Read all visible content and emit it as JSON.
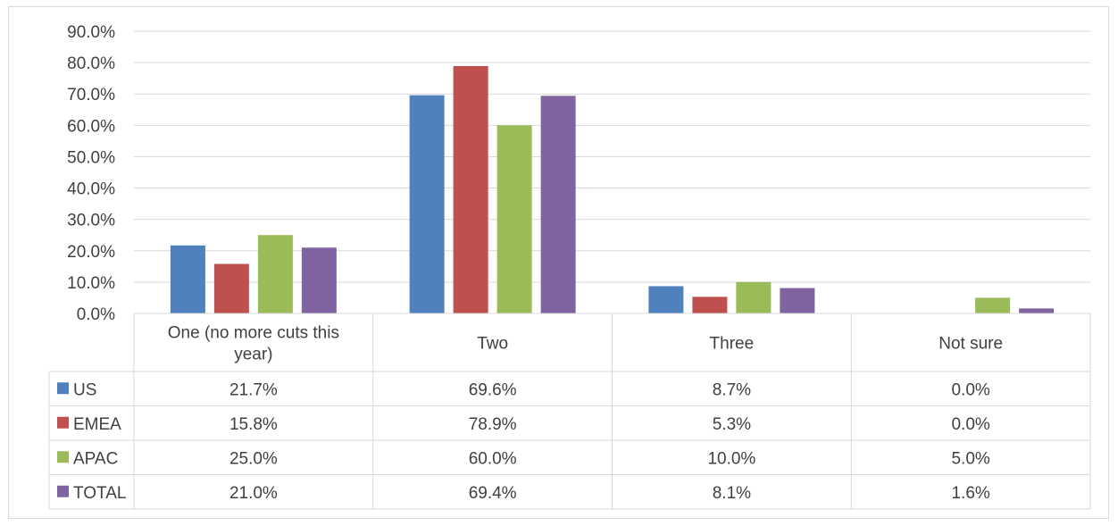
{
  "chart_data": {
    "type": "bar",
    "categories": [
      [
        "One (no more cuts this",
        "year)"
      ],
      [
        "Two"
      ],
      [
        "Three"
      ],
      [
        "Not sure"
      ]
    ],
    "series": [
      {
        "name": "US",
        "color": "#4f81bd",
        "values": [
          21.7,
          69.6,
          8.7,
          0.0
        ],
        "labels": [
          "21.7%",
          "69.6%",
          "8.7%",
          "0.0%"
        ]
      },
      {
        "name": "EMEA",
        "color": "#c0504d",
        "values": [
          15.8,
          78.9,
          5.3,
          0.0
        ],
        "labels": [
          "15.8%",
          "78.9%",
          "5.3%",
          "0.0%"
        ]
      },
      {
        "name": "APAC",
        "color": "#9bbb59",
        "values": [
          25.0,
          60.0,
          10.0,
          5.0
        ],
        "labels": [
          "25.0%",
          "60.0%",
          "10.0%",
          "5.0%"
        ]
      },
      {
        "name": "TOTAL",
        "color": "#8064a2",
        "values": [
          21.0,
          69.4,
          8.1,
          1.6
        ],
        "labels": [
          "21.0%",
          "69.4%",
          "8.1%",
          "1.6%"
        ]
      }
    ],
    "y_ticks": [
      "0.0%",
      "10.0%",
      "20.0%",
      "30.0%",
      "40.0%",
      "50.0%",
      "60.0%",
      "70.0%",
      "80.0%",
      "90.0%"
    ],
    "ylim": [
      0,
      90
    ],
    "grid": true,
    "legend": "data-table",
    "title": "",
    "xlabel": "",
    "ylabel": ""
  }
}
